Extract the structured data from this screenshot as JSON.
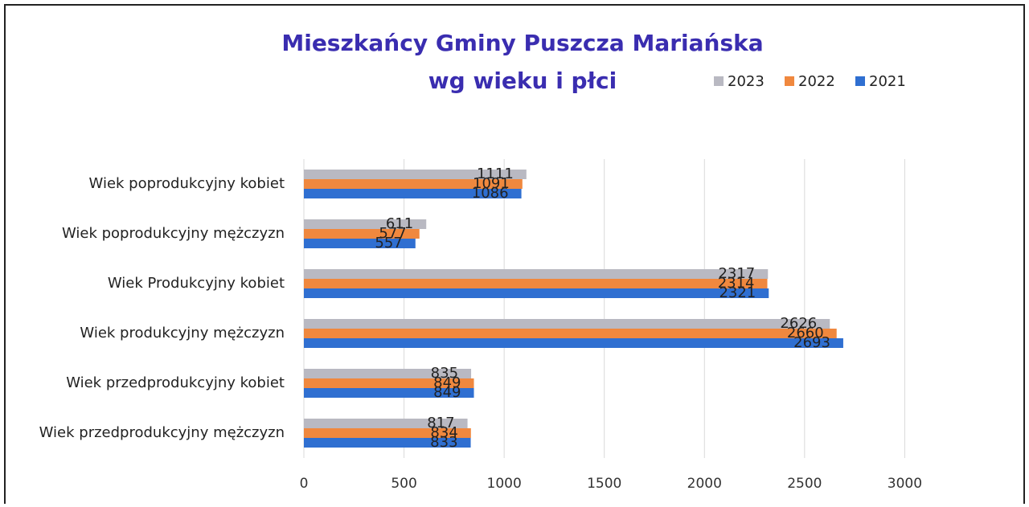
{
  "chart_data": {
    "type": "hbar",
    "title": [
      "Mieszkańcy Gminy Puszcza Mariańska",
      "wg wieku i płci"
    ],
    "categories": [
      "Wiek poprodukcyjny kobiet",
      "Wiek poprodukcyjny mężczyzn",
      "Wiek Produkcyjny kobiet",
      "Wiek produkcyjny mężczyzn",
      "Wiek przedprodukcyjny kobiet",
      "Wiek przedprodukcyjny mężczyzn"
    ],
    "series": [
      {
        "name": "2023",
        "color": "#b9b9c2",
        "values": [
          1111,
          611,
          2317,
          2626,
          835,
          817
        ]
      },
      {
        "name": "2022",
        "color": "#f0883e",
        "values": [
          1091,
          577,
          2314,
          2660,
          849,
          834
        ]
      },
      {
        "name": "2021",
        "color": "#2f6fd1",
        "values": [
          1086,
          557,
          2321,
          2693,
          849,
          833
        ]
      }
    ],
    "xlim": [
      0,
      3500
    ],
    "xticks": [
      0,
      500,
      1000,
      1500,
      2000,
      2500,
      3000
    ],
    "grid": true,
    "legend": "top-right",
    "data_labels": true
  }
}
